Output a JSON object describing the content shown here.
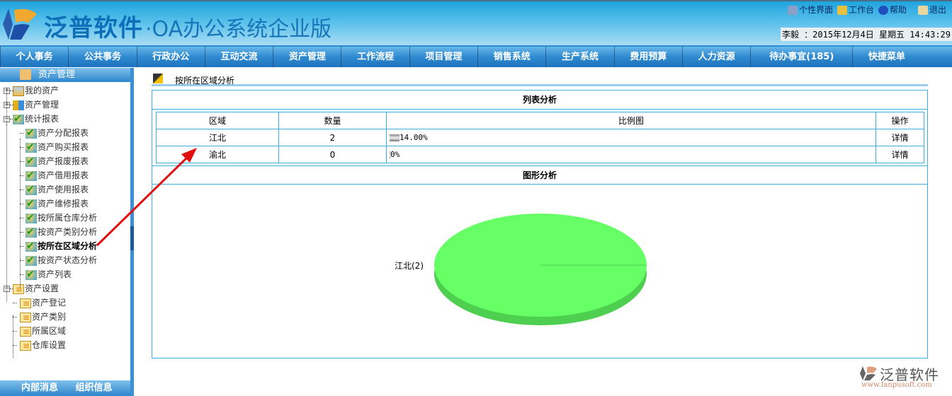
{
  "header": {
    "brand": "泛普软件",
    "subtitle": "·OA办公系统企业版",
    "links": [
      {
        "label": "个性界面",
        "icon": "monitor-icon"
      },
      {
        "label": "工作台",
        "icon": "flag-icon"
      },
      {
        "label": "帮助",
        "icon": "help-icon"
      },
      {
        "label": "退出",
        "icon": "exit-icon"
      }
    ],
    "datetime": "李毅 ：2015年12月4日 星期五 14:43:29"
  },
  "nav": [
    "个人事务",
    "公共事务",
    "行政办公",
    "互动交流",
    "资产管理",
    "工作流程",
    "项目管理",
    "销售系统",
    "生产系统",
    "费用预算",
    "人力资源",
    "待办事宜(185)",
    "快捷菜单"
  ],
  "sidebar": {
    "title": "资产管理",
    "tree": [
      {
        "label": "我的资产",
        "icon": "folder"
      },
      {
        "label": "资产管理",
        "icon": "mgr"
      },
      {
        "label": "统计报表",
        "icon": "check"
      },
      {
        "label": "资产分配报表",
        "icon": "check"
      },
      {
        "label": "资产购买报表",
        "icon": "check"
      },
      {
        "label": "资产报废报表",
        "icon": "check"
      },
      {
        "label": "资产借用报表",
        "icon": "check"
      },
      {
        "label": "资产使用报表",
        "icon": "check"
      },
      {
        "label": "资产维修报表",
        "icon": "check"
      },
      {
        "label": "按所属仓库分析",
        "icon": "check"
      },
      {
        "label": "按资产类别分析",
        "icon": "check"
      },
      {
        "label": "按所在区域分析",
        "icon": "check"
      },
      {
        "label": "按资产状态分析",
        "icon": "check"
      },
      {
        "label": "资产列表",
        "icon": "check"
      },
      {
        "label": "资产设置",
        "icon": "doc"
      },
      {
        "label": "资产登记",
        "icon": "doc"
      },
      {
        "label": "资产类别",
        "icon": "doc"
      },
      {
        "label": "所属区域",
        "icon": "doc"
      },
      {
        "label": "仓库设置",
        "icon": "doc"
      }
    ],
    "footer": [
      "内部消息",
      "组织信息"
    ]
  },
  "content": {
    "title": "按所在区域分析",
    "list_title": "列表分析",
    "chart_title": "图形分析",
    "columns": [
      "区域",
      "数量",
      "比例图",
      "操作"
    ],
    "rows": [
      {
        "region": "江北",
        "count": "2",
        "ratio": "14.00%",
        "action": "详情"
      },
      {
        "region": "渝北",
        "count": "0",
        "ratio": "0%",
        "action": "详情"
      }
    ]
  },
  "chart_data": {
    "type": "pie",
    "categories": [
      "江北"
    ],
    "values": [
      2
    ],
    "labels": [
      "江北(2)"
    ],
    "colors": [
      "#66ff66"
    ]
  },
  "watermark": {
    "text": "泛普软件",
    "url": "www.fanpusoft.com"
  }
}
